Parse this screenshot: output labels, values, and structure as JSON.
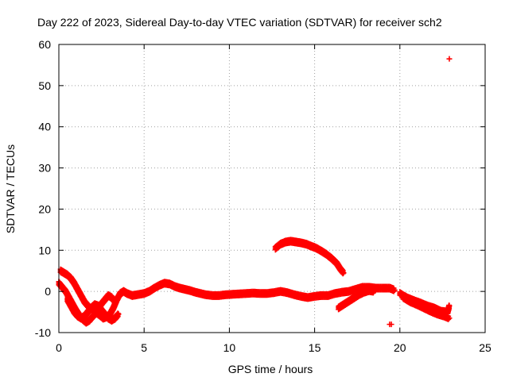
{
  "chart_data": {
    "type": "scatter",
    "title": "Day 222 of 2023, Sidereal Day-to-day VTEC variation (SDTVAR) for receiver sch2",
    "xlabel": "GPS time / hours",
    "ylabel": "SDTVAR / TECUs",
    "xlim": [
      0,
      25
    ],
    "ylim": [
      -10,
      60
    ],
    "xticks": [
      0,
      5,
      10,
      15,
      20,
      25
    ],
    "yticks": [
      -10,
      0,
      10,
      20,
      30,
      40,
      50,
      60
    ],
    "grid": true,
    "marker_color": "#ff0000",
    "series": [
      {
        "name": "main-band",
        "points": [
          [
            0.0,
            2.0
          ],
          [
            0.2,
            1.0
          ],
          [
            0.4,
            0.0
          ],
          [
            0.6,
            -1.5
          ],
          [
            0.8,
            -3.0
          ],
          [
            1.0,
            -4.5
          ],
          [
            1.2,
            -5.8
          ],
          [
            1.4,
            -6.8
          ],
          [
            1.6,
            -7.5
          ],
          [
            1.8,
            -7.0
          ],
          [
            2.0,
            -6.0
          ],
          [
            2.2,
            -5.2
          ],
          [
            2.4,
            -5.8
          ],
          [
            2.6,
            -6.5
          ],
          [
            2.8,
            -6.2
          ],
          [
            3.0,
            -5.5
          ],
          [
            3.2,
            -4.0
          ],
          [
            3.4,
            -2.0
          ],
          [
            3.6,
            -0.5
          ],
          [
            3.8,
            0.0
          ],
          [
            4.0,
            -0.5
          ],
          [
            4.3,
            -1.0
          ],
          [
            4.6,
            -0.8
          ],
          [
            5.0,
            -0.5
          ],
          [
            5.3,
            0.0
          ],
          [
            5.6,
            0.8
          ],
          [
            5.9,
            1.5
          ],
          [
            6.2,
            2.0
          ],
          [
            6.5,
            1.8
          ],
          [
            6.8,
            1.2
          ],
          [
            7.1,
            0.8
          ],
          [
            7.4,
            0.5
          ],
          [
            7.7,
            0.2
          ],
          [
            8.0,
            -0.2
          ],
          [
            8.3,
            -0.5
          ],
          [
            8.6,
            -0.8
          ],
          [
            9.0,
            -1.0
          ],
          [
            9.4,
            -1.0
          ],
          [
            9.8,
            -0.8
          ],
          [
            10.2,
            -0.7
          ],
          [
            10.6,
            -0.6
          ],
          [
            11.0,
            -0.5
          ],
          [
            11.4,
            -0.4
          ],
          [
            11.8,
            -0.5
          ],
          [
            12.2,
            -0.5
          ],
          [
            12.6,
            -0.3
          ],
          [
            13.0,
            0.0
          ],
          [
            13.4,
            -0.3
          ],
          [
            13.8,
            -0.8
          ],
          [
            14.2,
            -1.2
          ],
          [
            14.6,
            -1.5
          ],
          [
            15.0,
            -1.2
          ],
          [
            15.4,
            -1.0
          ],
          [
            15.8,
            -1.0
          ],
          [
            16.2,
            -0.5
          ],
          [
            16.6,
            -0.2
          ],
          [
            17.0,
            0.0
          ],
          [
            17.4,
            0.5
          ],
          [
            17.8,
            1.0
          ],
          [
            18.2,
            1.0
          ],
          [
            18.6,
            0.8
          ],
          [
            19.0,
            0.8
          ],
          [
            19.4,
            0.8
          ],
          [
            19.7,
            0.3
          ]
        ]
      },
      {
        "name": "early-upper-branch",
        "points": [
          [
            0.1,
            5.0
          ],
          [
            0.3,
            4.5
          ],
          [
            0.5,
            4.0
          ],
          [
            0.7,
            3.2
          ],
          [
            0.9,
            2.0
          ],
          [
            1.1,
            0.5
          ],
          [
            1.3,
            -1.0
          ],
          [
            1.5,
            -2.5
          ],
          [
            1.7,
            -3.5
          ],
          [
            1.9,
            -4.2
          ],
          [
            2.1,
            -4.5
          ],
          [
            2.3,
            -4.0
          ],
          [
            2.5,
            -3.0
          ],
          [
            2.7,
            -2.0
          ],
          [
            2.9,
            -1.0
          ],
          [
            3.1,
            -1.5
          ],
          [
            3.3,
            -2.5
          ]
        ]
      },
      {
        "name": "early-lower-loop",
        "points": [
          [
            0.5,
            -2.0
          ],
          [
            0.7,
            -3.5
          ],
          [
            0.9,
            -5.0
          ],
          [
            1.1,
            -6.0
          ],
          [
            1.3,
            -6.5
          ],
          [
            1.5,
            -6.0
          ],
          [
            1.7,
            -5.0
          ],
          [
            1.9,
            -4.0
          ],
          [
            2.1,
            -3.2
          ],
          [
            2.3,
            -3.5
          ],
          [
            2.5,
            -4.5
          ],
          [
            2.7,
            -5.5
          ],
          [
            2.9,
            -6.5
          ],
          [
            3.1,
            -7.0
          ],
          [
            3.3,
            -6.5
          ],
          [
            3.5,
            -5.5
          ]
        ]
      },
      {
        "name": "elevated-arc",
        "points": [
          [
            12.7,
            10.5
          ],
          [
            13.0,
            11.5
          ],
          [
            13.3,
            12.0
          ],
          [
            13.6,
            12.2
          ],
          [
            13.9,
            12.0
          ],
          [
            14.2,
            11.8
          ],
          [
            14.5,
            11.5
          ],
          [
            14.8,
            11.0
          ],
          [
            15.1,
            10.5
          ],
          [
            15.4,
            9.8
          ],
          [
            15.7,
            9.0
          ],
          [
            16.0,
            8.0
          ],
          [
            16.3,
            6.8
          ],
          [
            16.5,
            5.5
          ],
          [
            16.7,
            4.5
          ]
        ]
      },
      {
        "name": "afternoon-branch",
        "points": [
          [
            16.4,
            -4.0
          ],
          [
            16.7,
            -3.2
          ],
          [
            17.0,
            -2.4
          ],
          [
            17.3,
            -1.6
          ],
          [
            17.6,
            -0.8
          ],
          [
            17.9,
            -0.2
          ],
          [
            18.2,
            0.2
          ],
          [
            18.5,
            0.0
          ]
        ]
      },
      {
        "name": "evening-upper",
        "points": [
          [
            20.0,
            -0.5
          ],
          [
            20.4,
            -1.5
          ],
          [
            20.8,
            -2.2
          ],
          [
            21.2,
            -2.8
          ],
          [
            21.6,
            -3.5
          ],
          [
            22.0,
            -4.0
          ],
          [
            22.4,
            -4.8
          ],
          [
            22.8,
            -5.0
          ],
          [
            22.9,
            -3.5
          ]
        ]
      },
      {
        "name": "evening-lower",
        "points": [
          [
            20.2,
            -1.5
          ],
          [
            20.6,
            -2.5
          ],
          [
            21.0,
            -3.2
          ],
          [
            21.4,
            -4.0
          ],
          [
            21.8,
            -4.8
          ],
          [
            22.2,
            -5.5
          ],
          [
            22.6,
            -6.0
          ],
          [
            22.9,
            -6.5
          ]
        ]
      },
      {
        "name": "isolated",
        "points": [
          [
            19.4,
            -8.0
          ],
          [
            19.5,
            -8.0
          ],
          [
            22.9,
            56.5
          ]
        ]
      }
    ]
  }
}
